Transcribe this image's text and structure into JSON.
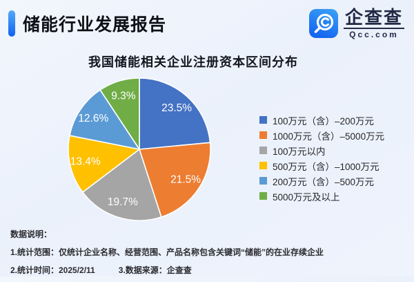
{
  "header": {
    "title": "储能行业发展报告",
    "logo_text": "企查查",
    "logo_domain": "Qcc.com"
  },
  "chart_data": {
    "type": "pie",
    "title": "我国储能相关企业注册资本区间分布",
    "categories": [
      "100万元（含）–200万元",
      "1000万元（含）–5000万元",
      "100万元以内",
      "500万元（含）–1000万元",
      "200万元（含）–500万元",
      "5000万元及以上"
    ],
    "values": [
      23.5,
      21.5,
      19.7,
      13.4,
      12.6,
      9.3
    ],
    "value_labels": [
      "23.5%",
      "21.5%",
      "19.7%",
      "13.4%",
      "12.6%",
      "9.3%"
    ],
    "colors": [
      "#4472C4",
      "#ED7D31",
      "#A5A5A5",
      "#FFC000",
      "#5B9BD5",
      "#70AD47"
    ],
    "unit": "%",
    "start_angle": "12-oclock",
    "direction": "clockwise",
    "labels_position": "inside",
    "legend_position": "right"
  },
  "footer": {
    "heading": "数据说明：",
    "note1": "1.统计范围：仅统计企业名称、经营范围、产品名称包含关键词“储能”的在业存续企业",
    "note2": "2.统计时间：2025/2/11",
    "note3": "3.数据来源：企查查"
  },
  "brand": {
    "accent_blue": "#1668F0",
    "logo_navy": "#222A45",
    "background": "#EEF3FC"
  }
}
